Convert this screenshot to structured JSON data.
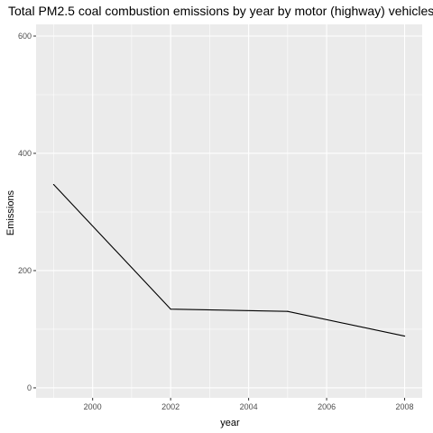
{
  "chart_data": {
    "type": "line",
    "title": "Total PM2.5 coal combustion emissions by year by motor (highway) vehicles",
    "xlabel": "year",
    "ylabel": "Emissions",
    "x": [
      1999,
      2002,
      2005,
      2008
    ],
    "series": [
      {
        "values": [
          346.8,
          134.3,
          130.4,
          88.3
        ]
      }
    ],
    "xlim": [
      1998.55,
      2008.45
    ],
    "ylim": [
      -17.0,
      620.0
    ],
    "x_ticks": [
      2000,
      2002,
      2004,
      2006,
      2008
    ],
    "y_ticks": [
      0,
      200,
      400,
      600
    ],
    "x_tick_labels": [
      "2000",
      "2002",
      "2004",
      "2006",
      "2008"
    ],
    "y_tick_labels": [
      "0",
      "200",
      "400",
      "600"
    ],
    "grid": true,
    "line_color": "#000000",
    "panel_background": "#ebebeb",
    "grid_color": "#ffffff"
  }
}
